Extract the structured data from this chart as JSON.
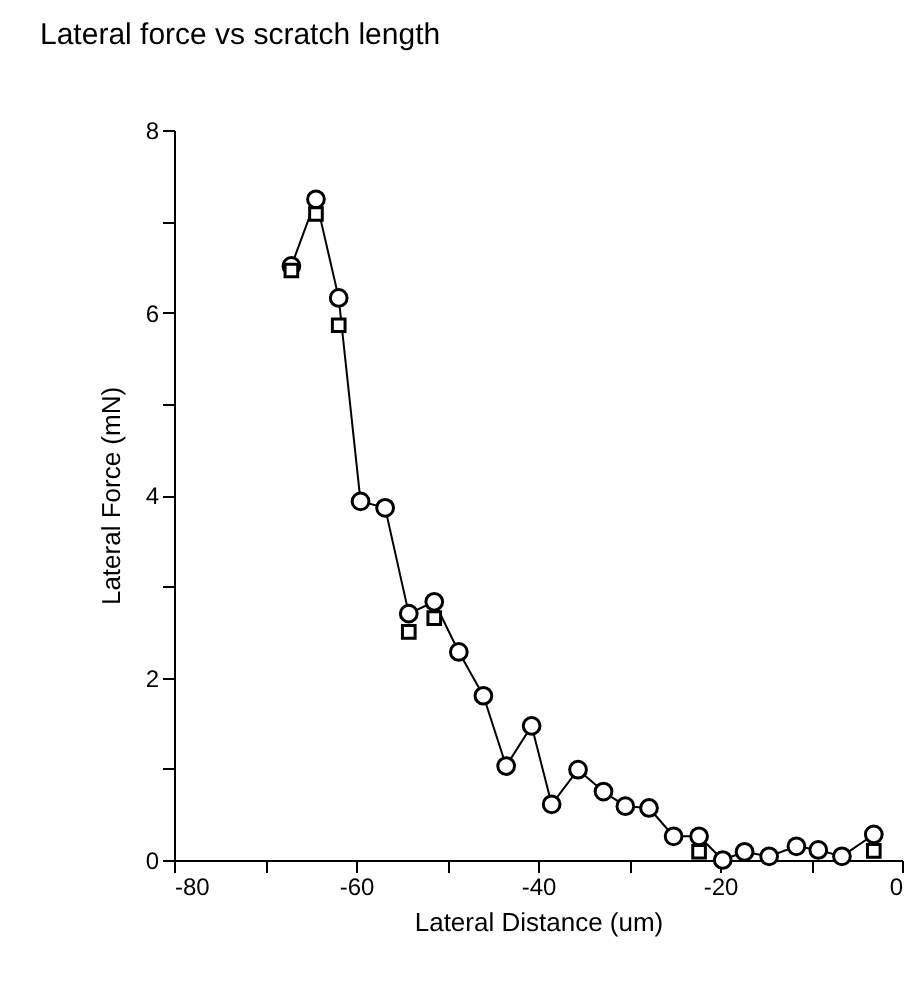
{
  "chart_data": {
    "type": "line",
    "title": "Lateral force vs scratch length",
    "xlabel": "Lateral Distance (um)",
    "ylabel": "Lateral Force (mN)",
    "x": [
      -67.1,
      -64.4,
      -61.9,
      -59.5,
      -56.8,
      -54.2,
      -51.4,
      -48.7,
      -46.0,
      -43.5,
      -40.7,
      -38.5,
      -35.6,
      -32.8,
      -30.4,
      -27.8,
      -25.1,
      -22.3,
      -19.7,
      -17.3,
      -14.6,
      -11.6,
      -9.2,
      -6.6,
      -3.1
    ],
    "series": [
      {
        "marker": "circle",
        "color": "#000000",
        "values": [
          6.51,
          7.24,
          6.16,
          3.93,
          3.86,
          2.7,
          2.83,
          2.28,
          1.8,
          1.03,
          1.47,
          0.61,
          0.99,
          0.75,
          0.59,
          0.57,
          0.26,
          0.26,
          0.0,
          0.09,
          0.04,
          0.15,
          0.11,
          0.04,
          0.28
        ]
      },
      {
        "type": "scatter",
        "marker": "square",
        "color": "#000000",
        "values": [
          6.46,
          7.08,
          5.86,
          null,
          null,
          2.5,
          2.65,
          null,
          null,
          null,
          null,
          null,
          null,
          null,
          null,
          null,
          null,
          0.09,
          null,
          null,
          null,
          null,
          null,
          null,
          0.1
        ]
      }
    ],
    "xlim": [
      -80,
      0
    ],
    "xticks": [
      -80,
      {
        "value": -70,
        "label": null
      },
      -60,
      {
        "value": -50,
        "label": null
      },
      -40,
      {
        "value": -30,
        "label": null
      },
      -20,
      {
        "value": -10,
        "label": null
      },
      0
    ],
    "ylim": [
      0,
      8
    ],
    "yticks": [
      0,
      {
        "value": 1,
        "label": null
      },
      2,
      {
        "value": 3,
        "label": null
      },
      4,
      {
        "value": 5,
        "label": null
      },
      6,
      {
        "value": 7,
        "label": null
      },
      8
    ],
    "line_style": "solid",
    "grid": false
  }
}
